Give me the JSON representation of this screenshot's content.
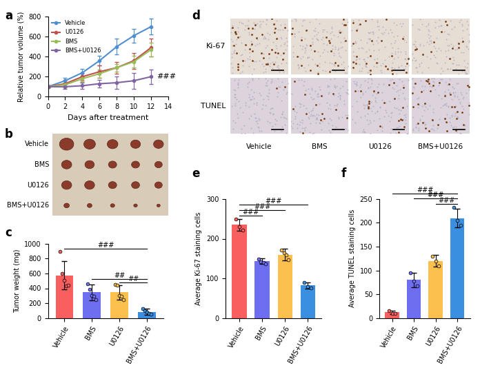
{
  "chart_data": [
    {
      "panel": "a",
      "type": "line",
      "x": [
        0,
        2,
        4,
        6,
        8,
        10,
        12
      ],
      "xlim": [
        0,
        14
      ],
      "xticks": [
        0,
        2,
        4,
        6,
        8,
        10,
        12,
        14
      ],
      "ylim": [
        0,
        800
      ],
      "yticks": [
        0,
        200,
        400,
        600,
        800
      ],
      "xlabel": "Days after treatment",
      "ylabel": "Relative tumor volume (%)",
      "legend": "upper left",
      "marker": "o",
      "series": [
        {
          "name": "Vehicle",
          "color": "#4f8fd1",
          "values": [
            100,
            160,
            240,
            360,
            500,
            610,
            700
          ],
          "errors": [
            10,
            30,
            40,
            50,
            80,
            70,
            80
          ]
        },
        {
          "name": "U0126",
          "color": "#c0504d",
          "values": [
            100,
            130,
            200,
            250,
            290,
            360,
            490
          ],
          "errors": [
            10,
            30,
            40,
            60,
            60,
            80,
            90
          ]
        },
        {
          "name": "BMS",
          "color": "#9bbb59",
          "values": [
            100,
            120,
            180,
            230,
            290,
            350,
            470
          ],
          "errors": [
            10,
            20,
            30,
            40,
            40,
            60,
            70
          ]
        },
        {
          "name": "BMS+U0126",
          "color": "#8064a2",
          "values": [
            100,
            100,
            110,
            130,
            140,
            160,
            200
          ],
          "errors": [
            10,
            20,
            30,
            40,
            60,
            80,
            70
          ]
        }
      ],
      "annotations": [
        {
          "text": "###",
          "x": 12,
          "y": 200
        }
      ]
    },
    {
      "panel": "c",
      "type": "bar",
      "categories": [
        "Vehicle",
        "BMS",
        "U0126",
        "BMS+U0126"
      ],
      "values": [
        575,
        345,
        345,
        85
      ],
      "errors": [
        190,
        110,
        100,
        40
      ],
      "points": [
        [
          900,
          600,
          510,
          430,
          440
        ],
        [
          460,
          390,
          300,
          290,
          250
        ],
        [
          450,
          440,
          300,
          290,
          250
        ],
        [
          130,
          100,
          80,
          60,
          50
        ]
      ],
      "colors": [
        "#f8605f",
        "#6e6ef0",
        "#fbc04e",
        "#3b8fe0"
      ],
      "ylim": [
        0,
        1000
      ],
      "yticks": [
        0,
        200,
        400,
        600,
        800,
        1000
      ],
      "ylabel": "Tumor weight (mg)",
      "annotations": [
        {
          "from": "Vehicle",
          "to": "BMS+U0126",
          "text": "###"
        },
        {
          "from": "BMS",
          "to": "BMS+U0126",
          "text": "##"
        },
        {
          "from": "U0126",
          "to": "BMS+U0126",
          "text": "##"
        }
      ]
    },
    {
      "panel": "e",
      "type": "bar",
      "categories": [
        "Vehicle",
        "BMS",
        "U0126",
        "BMS+U0126"
      ],
      "values": [
        235,
        143,
        160,
        82
      ],
      "errors": [
        15,
        7,
        15,
        8
      ],
      "points": [
        [
          250,
          230,
          222
        ],
        [
          148,
          142,
          140,
          137
        ],
        [
          172,
          165,
          160,
          147
        ],
        [
          90,
          80,
          76
        ]
      ],
      "colors": [
        "#f8605f",
        "#6e6ef0",
        "#fbc04e",
        "#3b8fe0"
      ],
      "ylim": [
        0,
        300
      ],
      "yticks": [
        0,
        100,
        200,
        300
      ],
      "ylabel": "Average Ki-67 staining cells",
      "annotations": [
        {
          "from": "Vehicle",
          "to": "BMS",
          "text": "###"
        },
        {
          "from": "Vehicle",
          "to": "U0126",
          "text": "###"
        },
        {
          "from": "Vehicle",
          "to": "BMS+U0126",
          "text": "###"
        }
      ]
    },
    {
      "panel": "f",
      "type": "bar",
      "categories": [
        "Vehicle",
        "BMS",
        "U0126",
        "BMS+U0126"
      ],
      "values": [
        12,
        80,
        120,
        210
      ],
      "errors": [
        4,
        15,
        12,
        20
      ],
      "points": [
        [
          15,
          10,
          9
        ],
        [
          95,
          78,
          68
        ],
        [
          130,
          120,
          110
        ],
        [
          232,
          205,
          195
        ]
      ],
      "colors": [
        "#f8605f",
        "#6e6ef0",
        "#fbc04e",
        "#3b8fe0"
      ],
      "ylim": [
        0,
        250
      ],
      "yticks": [
        0,
        50,
        100,
        150,
        200,
        250
      ],
      "ylabel": "Average TUNEL staining cells",
      "annotations": [
        {
          "from": "Vehicle",
          "to": "BMS+U0126",
          "text": "###"
        },
        {
          "from": "BMS",
          "to": "BMS+U0126",
          "text": "###"
        },
        {
          "from": "U0126",
          "to": "BMS+U0126",
          "text": "###"
        }
      ]
    }
  ],
  "images": [
    {
      "panel": "b",
      "rows": [
        "Vehicle",
        "BMS",
        "U0126",
        "BMS+U0126"
      ]
    },
    {
      "panel": "d",
      "rows": [
        "Ki-67",
        "TUNEL"
      ],
      "columns": [
        "Vehicle",
        "BMS",
        "U0126",
        "BMS+U0126"
      ]
    }
  ]
}
